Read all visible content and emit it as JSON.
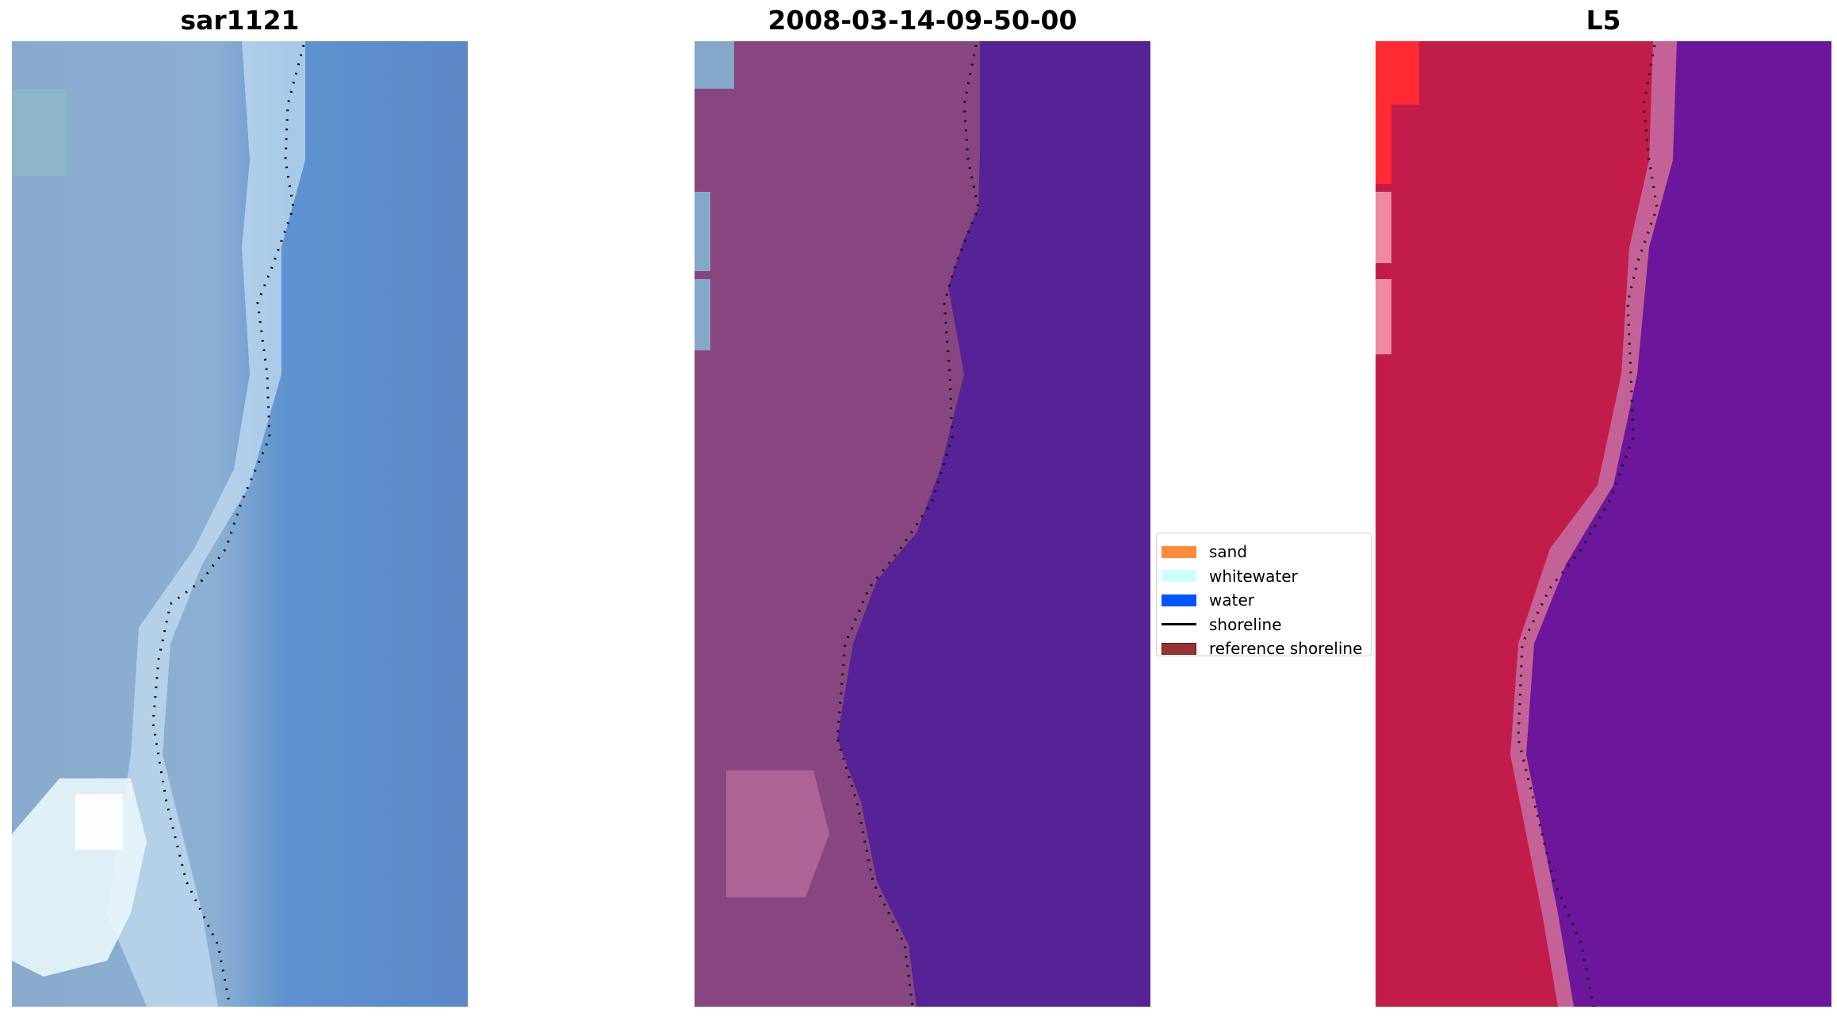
{
  "panels": [
    {
      "title": "sar1121",
      "image": "satellite-image-rgb"
    },
    {
      "title": "2008-03-14-09-50-00",
      "image": "classified-image"
    },
    {
      "title": "L5",
      "image": "ndwi-image"
    }
  ],
  "legend": [
    {
      "label": "sand",
      "color": "#ff8c3c",
      "type": "patch"
    },
    {
      "label": "whitewater",
      "color": "#ccffff",
      "type": "patch"
    },
    {
      "label": "water",
      "color": "#0055ff",
      "type": "patch"
    },
    {
      "label": "shoreline",
      "color": "#000000",
      "type": "line"
    },
    {
      "label": "reference shoreline",
      "color": "#993333",
      "type": "patch"
    }
  ],
  "colors": {
    "rgb_land": "#86a8cc",
    "rgb_water": "#5b8ccc",
    "rgb_foam": "#d4ecf4",
    "class_land": "#87467f",
    "class_water": "#552396",
    "ndwi_land": "#c21d4a",
    "ndwi_water": "#6c169b"
  }
}
